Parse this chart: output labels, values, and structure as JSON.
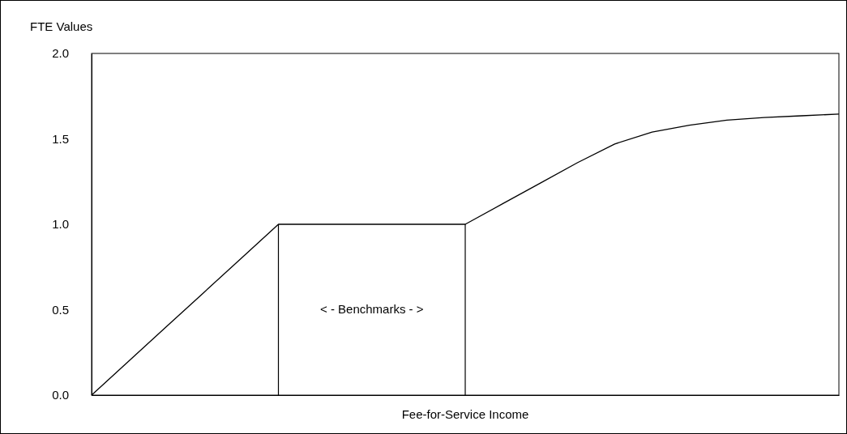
{
  "chart_data": {
    "type": "line",
    "xlabel": "Fee-for-Service Income",
    "ylabel": "FTE Values",
    "categories": [
      null,
      null,
      null,
      null,
      null,
      null,
      null,
      null,
      null,
      null,
      null,
      null,
      null,
      null,
      null,
      null,
      null,
      null,
      null,
      null,
      null
    ],
    "values": [
      0,
      0.2,
      0.4,
      0.6,
      0.8,
      1.0,
      1.0,
      1.0,
      1.0,
      1.0,
      1.0,
      1.12,
      1.24,
      1.36,
      1.47,
      1.54,
      1.58,
      1.61,
      1.625,
      1.635,
      1.645
    ],
    "color": "#000000",
    "ylim": [
      0,
      2
    ],
    "yticks": [
      {
        "value": 0,
        "label": "0.0"
      },
      {
        "value": 0.5,
        "label": "0.5"
      },
      {
        "value": 1,
        "label": "1.0"
      },
      {
        "value": 1.5,
        "label": "1.5"
      },
      {
        "value": 2,
        "label": "2.0"
      }
    ],
    "annotations": [
      "< - Benchmarks - >"
    ],
    "tick_labels": "y",
    "grid": false,
    "marker": "none",
    "line_style": "solid"
  }
}
